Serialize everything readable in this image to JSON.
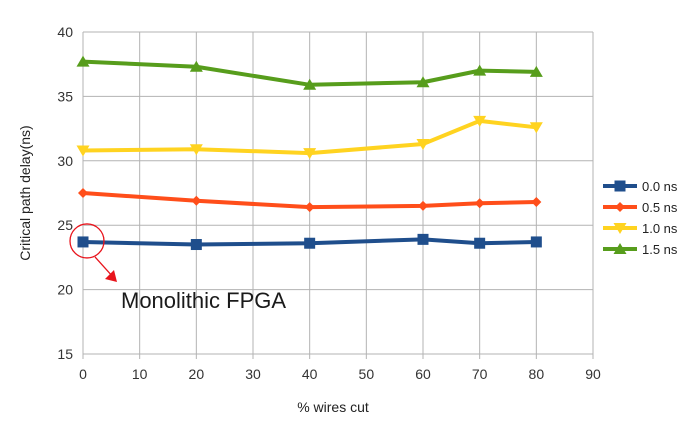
{
  "chart_data": {
    "type": "line",
    "xlabel": "% wires cut",
    "ylabel": "Critical path delay(ns)",
    "xlim": [
      0,
      90
    ],
    "ylim": [
      15,
      40
    ],
    "xticks": [
      0,
      10,
      20,
      30,
      40,
      50,
      60,
      70,
      80,
      90
    ],
    "yticks": [
      15,
      20,
      25,
      30,
      35,
      40
    ],
    "x": [
      0,
      20,
      40,
      60,
      70,
      80
    ],
    "grid": true,
    "legend_position": "right",
    "series": [
      {
        "name": "0.0 ns",
        "color": "#1f4e8c",
        "marker": "square",
        "values": [
          23.7,
          23.5,
          23.6,
          23.9,
          23.6,
          23.7
        ]
      },
      {
        "name": "0.5 ns",
        "color": "#ff4e1a",
        "marker": "diamond",
        "values": [
          27.5,
          26.9,
          26.4,
          26.5,
          26.7,
          26.8
        ]
      },
      {
        "name": "1.0 ns",
        "color": "#ffd320",
        "marker": "triangle-down",
        "values": [
          30.8,
          30.9,
          30.6,
          31.3,
          33.1,
          32.6
        ]
      },
      {
        "name": "1.5 ns",
        "color": "#579d1c",
        "marker": "triangle-up",
        "values": [
          37.7,
          37.3,
          35.9,
          36.1,
          37.0,
          36.9
        ]
      }
    ],
    "annotation": {
      "text": "Monolithic FPGA",
      "target_x": 0,
      "target_y": 23.7,
      "color": "#e8141c"
    }
  }
}
